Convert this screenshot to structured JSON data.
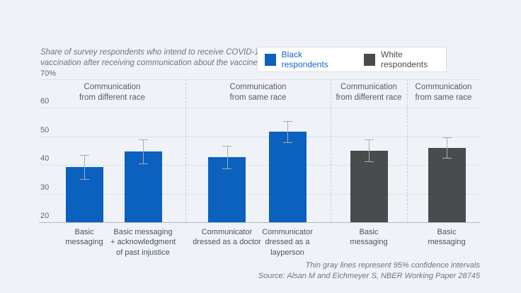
{
  "subtitle": "Share of survey respondents who intend to receive COVID-19\nvaccination after receiving communication about the vaccine",
  "legend": {
    "items": [
      {
        "label": "Black respondents",
        "swatch_color": "#0b61bd",
        "text_color": "#1565c6"
      },
      {
        "label": "White respondents",
        "swatch_color": "#4a4b4d",
        "text_color": "#4a4b4d"
      }
    ]
  },
  "footer": {
    "note": "Thin gray lines represent 95% confidence intervals",
    "source": "Source: Alsan M and Eichmeyer S, NBER Working Paper 28745"
  },
  "colors": {
    "background": "#eff3f7",
    "black_respondents_bar": "#0b61bd",
    "white_respondents_bar": "#4a4b4d",
    "error_bar": "#a6adb5",
    "gridline": "#dde3e9",
    "baseline": "#b3bac1"
  },
  "chart_data": {
    "type": "bar",
    "title": "Share of survey respondents who intend to receive COVID-19 vaccination after receiving communication about the vaccine",
    "ylim": [
      20,
      70
    ],
    "grid": true,
    "legend_position": "top-right",
    "yticks": [
      {
        "value": 70,
        "label": "70%"
      },
      {
        "value": 60,
        "label": "60"
      },
      {
        "value": 50,
        "label": "50"
      },
      {
        "value": 40,
        "label": "40"
      },
      {
        "value": 30,
        "label": "30"
      },
      {
        "value": 20,
        "label": "20"
      }
    ],
    "groups": [
      {
        "header": "Communication\nfrom different race",
        "series": "Black respondents"
      },
      {
        "header": "Communication\nfrom same race",
        "series": "Black respondents"
      },
      {
        "header": "Communication\nfrom different race",
        "series": "White respondents"
      },
      {
        "header": "Communication\nfrom same race",
        "series": "White respondents"
      }
    ],
    "bars": [
      {
        "group": 0,
        "series": 0,
        "label": "Basic\nmessaging",
        "value": 39.4,
        "ci_low": 35.2,
        "ci_high": 43.6
      },
      {
        "group": 0,
        "series": 0,
        "label": "Basic messaging\n+ acknowledgment\nof past injustice",
        "value": 44.8,
        "ci_low": 40.5,
        "ci_high": 49.0
      },
      {
        "group": 1,
        "series": 0,
        "label": "Communicator\ndressed as a doctor",
        "value": 42.8,
        "ci_low": 38.8,
        "ci_high": 46.8
      },
      {
        "group": 1,
        "series": 0,
        "label": "Communicator\ndressed as a\nlayperson",
        "value": 51.8,
        "ci_low": 48.0,
        "ci_high": 55.5
      },
      {
        "group": 2,
        "series": 1,
        "label": "Basic\nmessaging",
        "value": 45.1,
        "ci_low": 41.3,
        "ci_high": 48.9
      },
      {
        "group": 3,
        "series": 1,
        "label": "Basic\nmessaging",
        "value": 46.1,
        "ci_low": 42.5,
        "ci_high": 49.7
      }
    ],
    "note": "Thin gray lines represent 95% confidence intervals",
    "source": "Source: Alsan M and Eichmeyer S, NBER Working Paper 28745"
  }
}
